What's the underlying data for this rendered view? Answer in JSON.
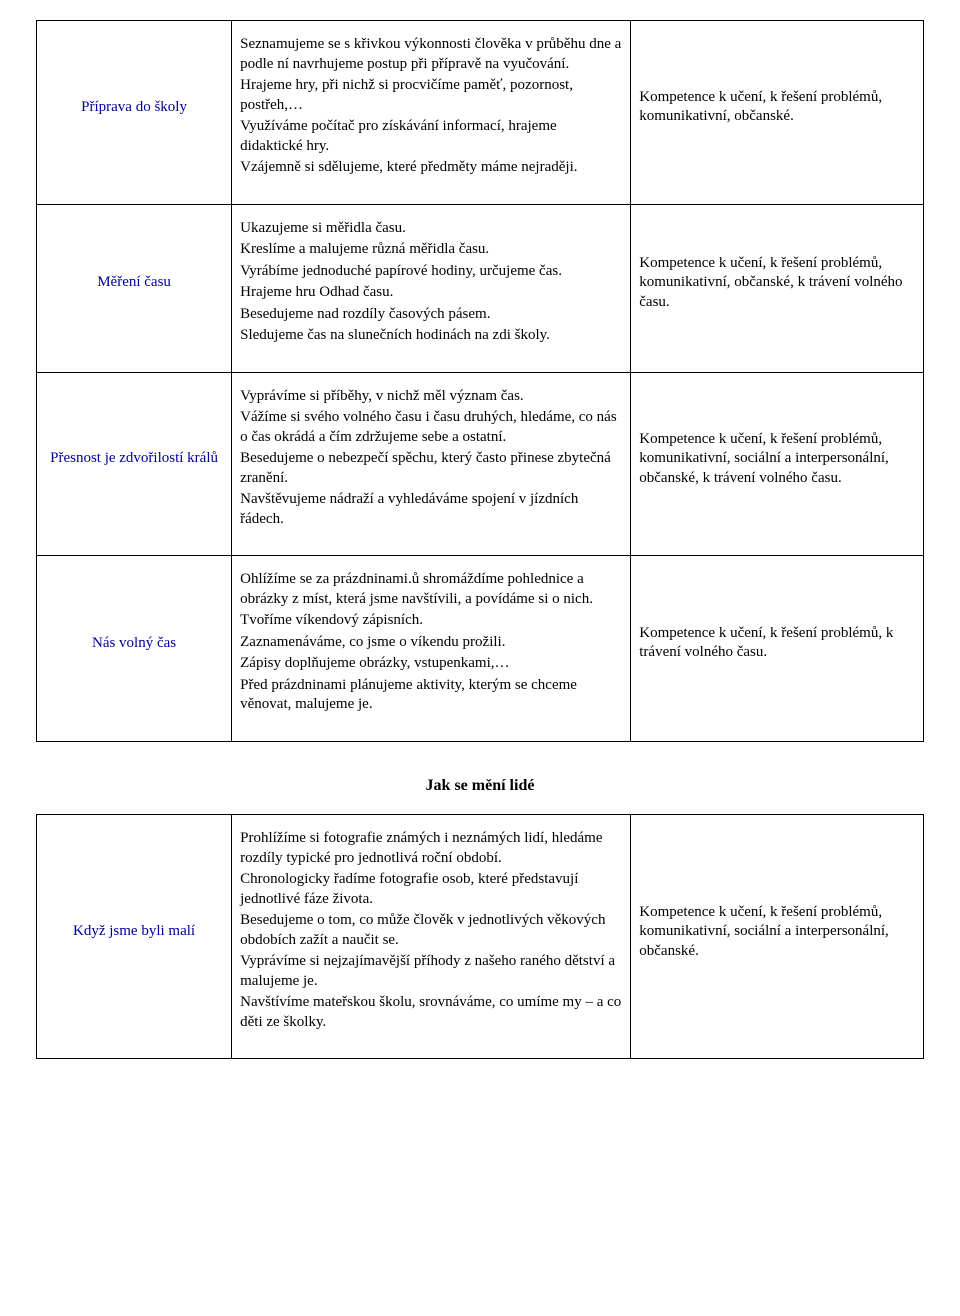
{
  "colors": {
    "heading_blue": "#000099",
    "text_black": "#000000",
    "border": "#000000",
    "background": "#ffffff"
  },
  "typography": {
    "base_fontsize_pt": 11,
    "heading_fontsize_pt": 12,
    "font_family": "Times New Roman"
  },
  "layout": {
    "columns": [
      "topic",
      "activities",
      "competences"
    ],
    "col_widths_pct": [
      22,
      45,
      33
    ]
  },
  "table1": {
    "rows": [
      {
        "topic": "Příprava do školy",
        "activities": [
          "Seznamujeme se s křivkou výkonnosti člověka v průběhu dne a podle ní navrhujeme postup při přípravě na vyučování.",
          "Hrajeme hry, při nichž si procvičíme paměť, pozornost, postřeh,…",
          "Využíváme počítač pro získávání informací, hrajeme didaktické hry.",
          "Vzájemně si sdělujeme, které předměty máme nejraději."
        ],
        "competences": "Kompetence k učení, k řešení problémů, komunikativní, občanské."
      },
      {
        "topic": "Měření času",
        "activities": [
          "Ukazujeme si měřidla času.",
          "Kreslíme a malujeme různá měřidla času.",
          "Vyrábíme jednoduché papírové hodiny, určujeme čas.",
          "Hrajeme hru Odhad času.",
          "Besedujeme nad rozdíly časových pásem.",
          "Sledujeme čas na slunečních hodinách na zdi školy."
        ],
        "competences": "Kompetence k učení, k řešení problémů, komunikativní, občanské, k trávení volného času."
      },
      {
        "topic": "Přesnost je zdvořilostí králů",
        "activities": [
          "Vyprávíme si příběhy, v nichž měl význam čas.",
          "Vážíme si svého volného času i času druhých, hledáme, co nás o čas okrádá a čím zdržujeme sebe a ostatní.",
          "Besedujeme o nebezpečí spěchu, který často přinese zbytečná zranění.",
          "Navštěvujeme nádraží a vyhledáváme spojení v jízdních řádech."
        ],
        "competences": "Kompetence k učení, k řešení problémů, komunikativní, sociální a interpersonální, občanské, k trávení volného času."
      },
      {
        "topic": "Nás volný čas",
        "activities": [
          "Ohlížíme se za prázdninami.ů shromáždíme pohlednice a obrázky z míst, která jsme navštívili, a povídáme si o nich.",
          "Tvoříme víkendový zápisních.",
          "Zaznamenáváme, co jsme o víkendu prožili.",
          "Zápisy doplňujeme obrázky, vstupenkami,…",
          "Před prázdninami plánujeme aktivity, kterým se chceme věnovat, malujeme je."
        ],
        "competences": "Kompetence k učení, k řešení problémů, k trávení volného času."
      }
    ]
  },
  "section_heading": "Jak se mění lidé",
  "table2": {
    "rows": [
      {
        "topic": "Když jsme byli malí",
        "activities": [
          "Prohlížíme si fotografie známých i neznámých lidí, hledáme rozdíly typické pro jednotlivá roční období.",
          "Chronologicky řadíme fotografie osob, které představují jednotlivé fáze života.",
          "Besedujeme o tom, co může člověk v jednotlivých věkových obdobích zažít a naučit se.",
          "Vyprávíme si nejzajímavější příhody z našeho raného dětství a malujeme je.",
          "Navštívíme mateřskou školu, srovnáváme, co umíme my – a co děti ze školky."
        ],
        "competences": "Kompetence k učení, k řešení problémů, komunikativní, sociální a interpersonální, občanské."
      }
    ]
  }
}
